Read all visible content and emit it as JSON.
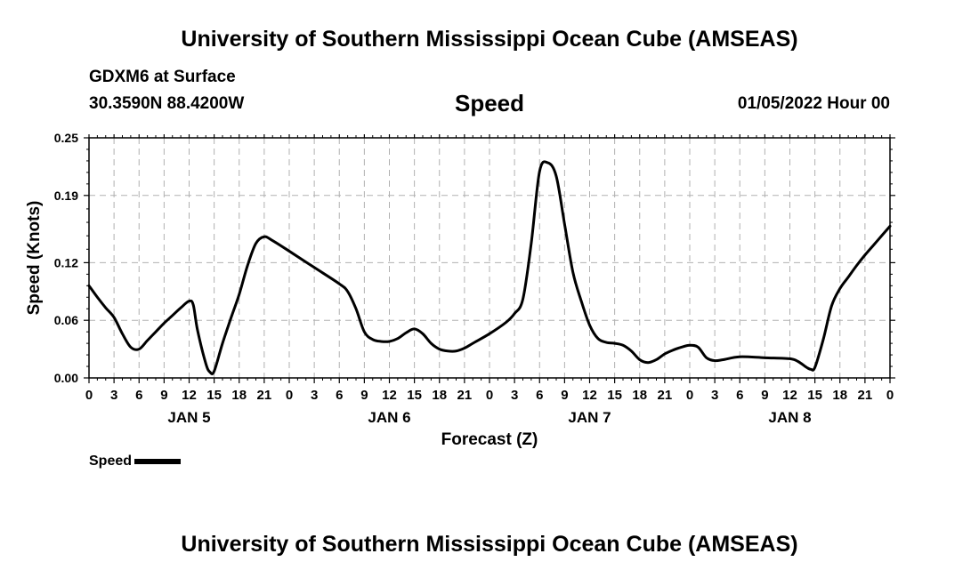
{
  "header": {
    "title": "University of Southern Mississippi Ocean Cube (AMSEAS)",
    "station": "GDXM6 at Surface",
    "coords": "30.3590N  88.4200W",
    "chart_title": "Speed",
    "timestamp": "01/05/2022 Hour 00"
  },
  "footer": {
    "title": "University of Southern Mississippi Ocean Cube (AMSEAS)"
  },
  "legend": {
    "label": "Speed"
  },
  "colors": {
    "line": "#000000",
    "grid": "#b0b0b0",
    "background": "#ffffff"
  },
  "chart_data": {
    "type": "line",
    "title": "Speed",
    "xlabel": "Forecast (Z)",
    "ylabel": "Speed (Knots)",
    "xlim": [
      0,
      96
    ],
    "ylim": [
      0,
      0.25
    ],
    "yticks": [
      0.0,
      0.06,
      0.12,
      0.19,
      0.25
    ],
    "ytick_labels": [
      "0.00",
      "0.06",
      "0.12",
      "0.19",
      "0.25"
    ],
    "xtick_labels": [
      "0",
      "3",
      "6",
      "9",
      "12",
      "15",
      "18",
      "21",
      "0",
      "3",
      "6",
      "9",
      "12",
      "15",
      "18",
      "21",
      "0",
      "3",
      "6",
      "9",
      "12",
      "15",
      "18",
      "21",
      "0",
      "3",
      "6",
      "9",
      "12",
      "15",
      "18",
      "21",
      "0"
    ],
    "day_labels": [
      {
        "hour": 12,
        "label": "JAN 5"
      },
      {
        "hour": 36,
        "label": "JAN 6"
      },
      {
        "hour": 60,
        "label": "JAN 7"
      },
      {
        "hour": 84,
        "label": "JAN 8"
      }
    ],
    "grid": true,
    "series": [
      {
        "name": "Speed",
        "x": [
          0,
          1,
          2,
          3,
          4,
          5,
          6,
          7,
          8,
          9,
          10,
          11,
          12,
          12.5,
          13,
          14,
          14.5,
          15,
          16,
          17,
          18,
          19,
          20,
          21,
          22,
          24,
          27,
          30,
          31,
          32,
          33,
          34,
          35,
          36,
          37,
          38,
          39,
          40,
          41,
          42,
          43,
          44,
          45,
          46,
          48,
          50,
          51,
          52,
          53,
          54,
          55,
          56,
          57,
          58,
          59,
          60,
          61,
          62,
          63,
          64,
          65,
          66,
          67,
          68,
          69,
          70,
          71,
          72,
          73,
          74,
          75,
          76,
          78,
          81,
          84,
          85,
          86,
          86.5,
          87,
          88,
          89,
          90,
          91,
          92,
          93,
          94,
          95,
          96
        ],
        "values": [
          0.096,
          0.084,
          0.073,
          0.063,
          0.046,
          0.032,
          0.03,
          0.039,
          0.048,
          0.057,
          0.065,
          0.073,
          0.08,
          0.076,
          0.05,
          0.015,
          0.006,
          0.007,
          0.036,
          0.062,
          0.087,
          0.117,
          0.14,
          0.147,
          0.143,
          0.132,
          0.115,
          0.098,
          0.09,
          0.072,
          0.048,
          0.04,
          0.038,
          0.038,
          0.041,
          0.047,
          0.051,
          0.046,
          0.036,
          0.03,
          0.028,
          0.028,
          0.031,
          0.036,
          0.046,
          0.058,
          0.067,
          0.082,
          0.14,
          0.215,
          0.224,
          0.21,
          0.16,
          0.11,
          0.08,
          0.055,
          0.041,
          0.037,
          0.036,
          0.034,
          0.028,
          0.019,
          0.016,
          0.019,
          0.025,
          0.029,
          0.032,
          0.034,
          0.032,
          0.021,
          0.018,
          0.019,
          0.022,
          0.021,
          0.02,
          0.017,
          0.011,
          0.009,
          0.011,
          0.04,
          0.075,
          0.093,
          0.105,
          0.117,
          0.128,
          0.138,
          0.148,
          0.158
        ]
      }
    ]
  }
}
